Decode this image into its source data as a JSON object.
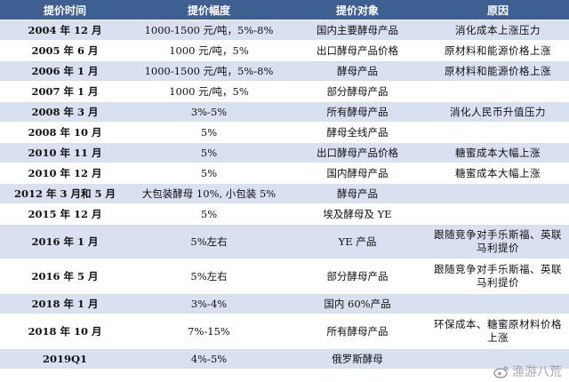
{
  "table": {
    "headers": [
      "提价时间",
      "提价幅度",
      "提价对象",
      "原因"
    ],
    "rows": [
      {
        "date": "2004 年 12 月",
        "range": "1000-1500 元/吨，5%-8%",
        "target": "国内主要酵母产品",
        "reason": "消化成本上涨压力"
      },
      {
        "date": "2005 年 6 月",
        "range": "1000 元/吨，5%",
        "target": "出口酵母产品价格",
        "reason": "原材料和能源价格上涨"
      },
      {
        "date": "2006 年 1 月",
        "range": "1000-1500 元/吨，5%-8%",
        "target": "酵母产品",
        "reason": "原材料和能源价格上涨"
      },
      {
        "date": "2007 年 1 月",
        "range": "1000 元/吨，5%",
        "target": "部分酵母产品",
        "reason": ""
      },
      {
        "date": "2008 年 3 月",
        "range": "3%-5%",
        "target": "所有酵母产品",
        "reason": "消化人民币升值压力"
      },
      {
        "date": "2008 年 10 月",
        "range": "5%",
        "target": "酵母全线产品",
        "reason": ""
      },
      {
        "date": "2010 年 11 月",
        "range": "5%",
        "target": "出口酵母产品价格",
        "reason": "糖蜜成本大幅上涨"
      },
      {
        "date": "2010 年 12 月",
        "range": "5%",
        "target": "国内酵母产品",
        "reason": "糖蜜成本大幅上涨"
      },
      {
        "date": "2012 年 3 月和 5 月",
        "range": "大包装酵母 10%, 小包装 5%",
        "target": "酵母产品",
        "reason": ""
      },
      {
        "date": "2015 年 12 月",
        "range": "5%",
        "target": "埃及酵母及 YE",
        "reason": ""
      },
      {
        "date": "2016 年 1 月",
        "range": "5%左右",
        "target": "YE 产品",
        "reason": "跟随竞争对手乐斯福、英联马利提价"
      },
      {
        "date": "2016 年 5 月",
        "range": "5%左右",
        "target": "部分酵母产品",
        "reason": "跟随竞争对手乐斯福、英联马利提价"
      },
      {
        "date": "2018 年 1 月",
        "range": "3%-4%",
        "target": "国内 60%产品",
        "reason": ""
      },
      {
        "date": "2018 年 10 月",
        "range": "7%-15%",
        "target": "所有酵母产品",
        "reason": "环保成本、糖蜜原材料价格上涨"
      },
      {
        "date": "2019Q1",
        "range": "4%-5%",
        "target": "俄罗斯酵母",
        "reason": ""
      }
    ]
  },
  "watermark": {
    "text": "渔游八荒",
    "icon": "weibo-icon"
  }
}
